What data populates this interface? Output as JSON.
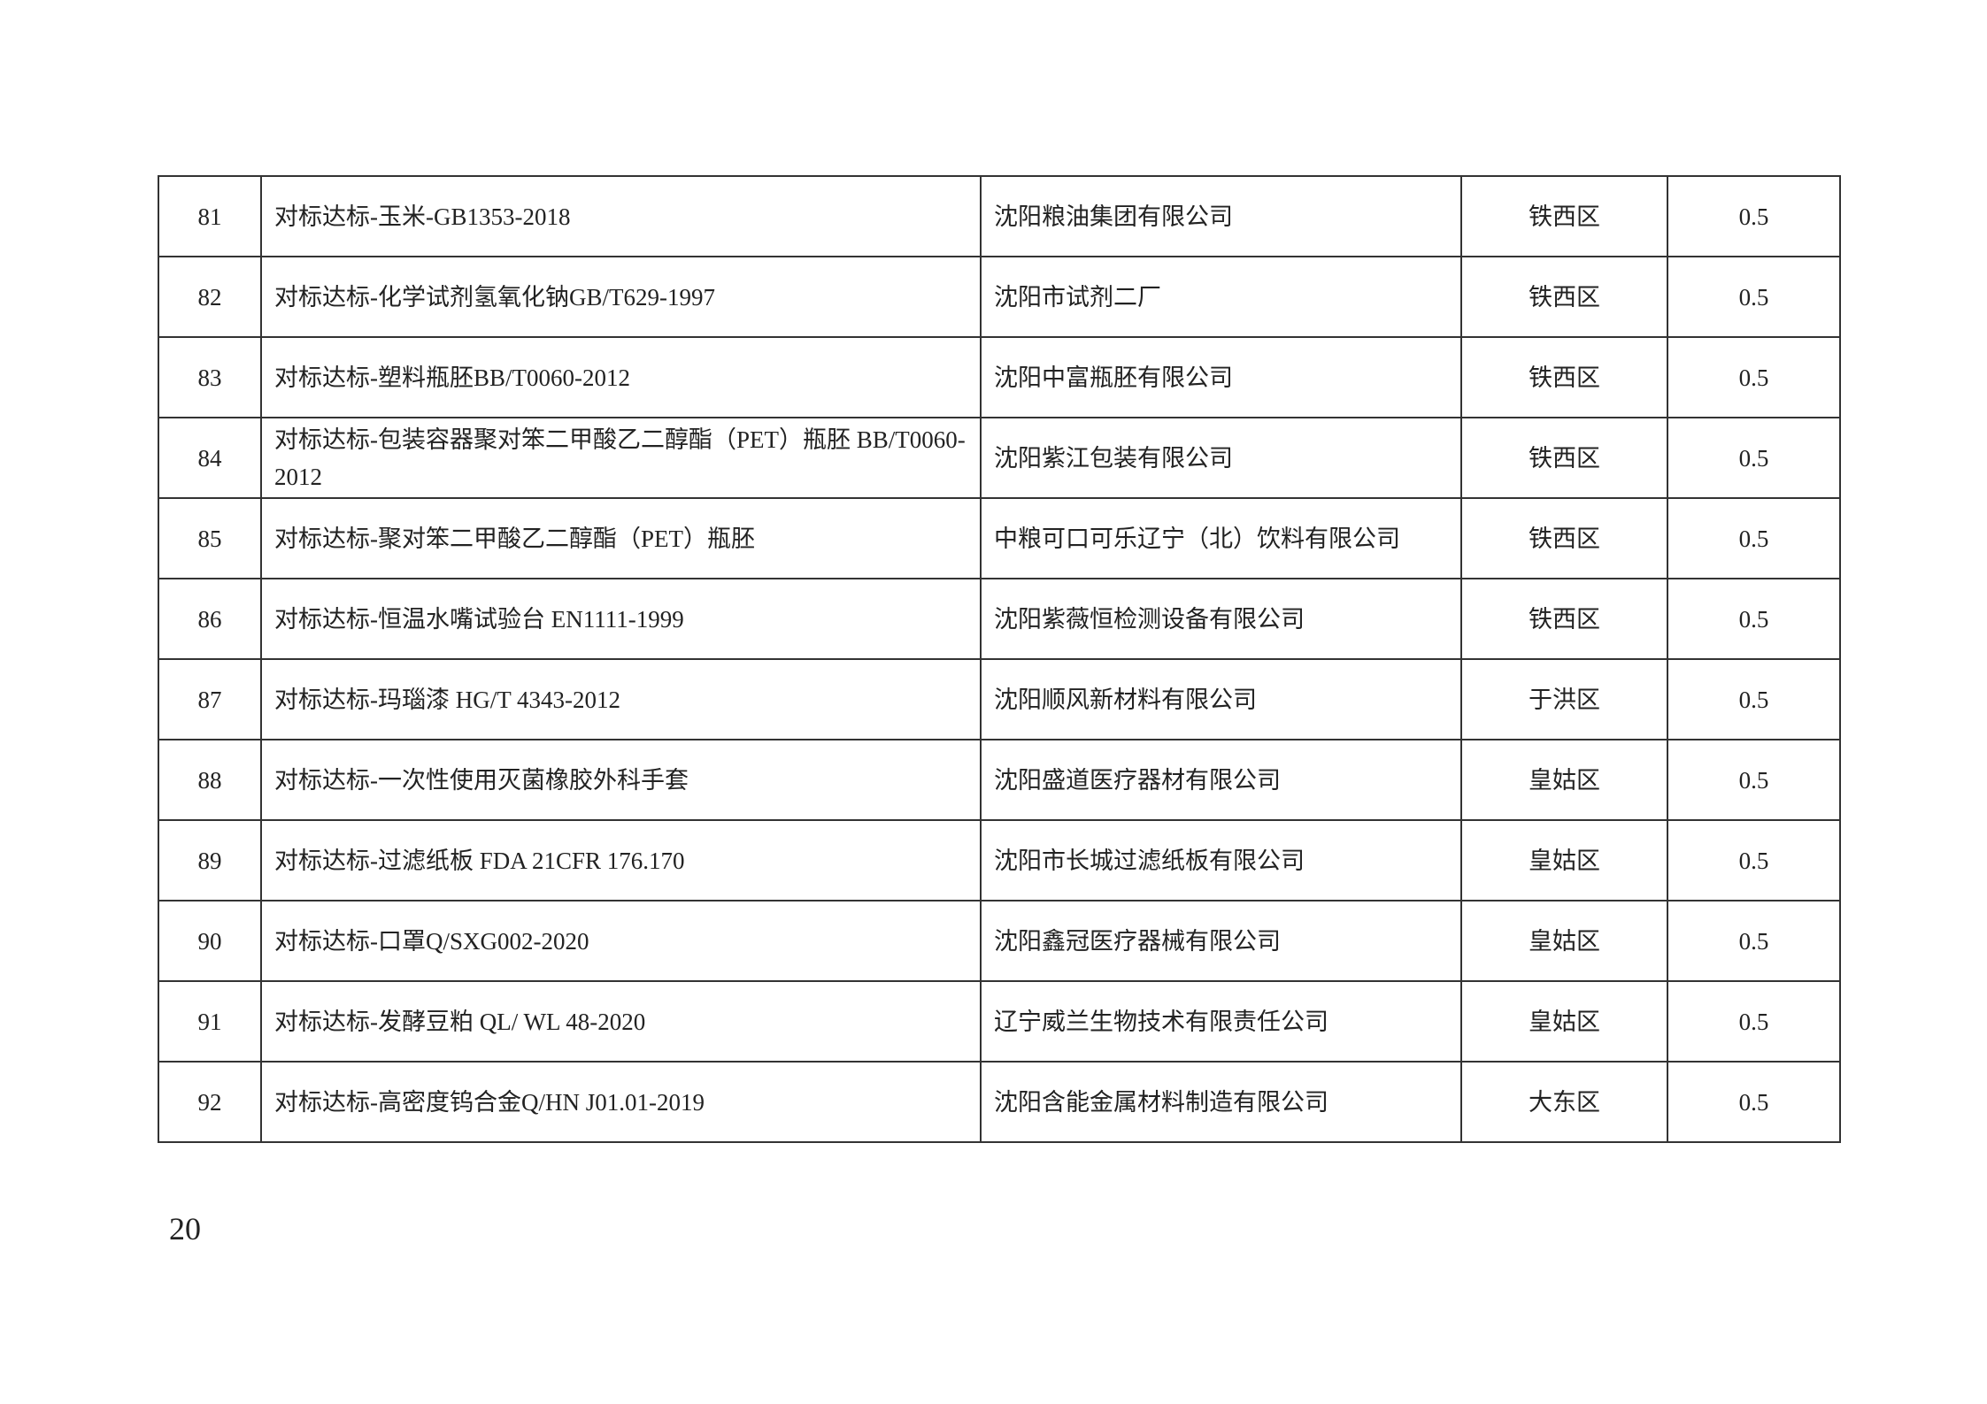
{
  "rows": [
    {
      "no": "81",
      "project": "对标达标-玉米-GB1353-2018",
      "company": "沈阳粮油集团有限公司",
      "district": "铁西区",
      "amount": "0.5"
    },
    {
      "no": "82",
      "project": "对标达标-化学试剂氢氧化钠GB/T629-1997",
      "company": "沈阳市试剂二厂",
      "district": "铁西区",
      "amount": "0.5"
    },
    {
      "no": "83",
      "project": "对标达标-塑料瓶胚BB/T0060-2012",
      "company": "沈阳中富瓶胚有限公司",
      "district": "铁西区",
      "amount": "0.5"
    },
    {
      "no": "84",
      "project": "对标达标-包装容器聚对笨二甲酸乙二醇酯（PET）瓶胚 BB/T0060-2012",
      "company": "沈阳紫江包装有限公司",
      "district": "铁西区",
      "amount": "0.5"
    },
    {
      "no": "85",
      "project": "对标达标-聚对笨二甲酸乙二醇酯（PET）瓶胚",
      "company": "中粮可口可乐辽宁（北）饮料有限公司",
      "district": "铁西区",
      "amount": "0.5"
    },
    {
      "no": "86",
      "project": "对标达标-恒温水嘴试验台 EN1111-1999",
      "company": "沈阳紫薇恒检测设备有限公司",
      "district": "铁西区",
      "amount": "0.5"
    },
    {
      "no": "87",
      "project": "对标达标-玛瑙漆 HG/T 4343-2012",
      "company": "沈阳顺风新材料有限公司",
      "district": "于洪区",
      "amount": "0.5"
    },
    {
      "no": "88",
      "project": "对标达标-一次性使用灭菌橡胶外科手套",
      "company": "沈阳盛道医疗器材有限公司",
      "district": "皇姑区",
      "amount": "0.5"
    },
    {
      "no": "89",
      "project": "对标达标-过滤纸板 FDA 21CFR 176.170",
      "company": "沈阳市长城过滤纸板有限公司",
      "district": "皇姑区",
      "amount": "0.5"
    },
    {
      "no": "90",
      "project": "对标达标-口罩Q/SXG002-2020",
      "company": "沈阳鑫冠医疗器械有限公司",
      "district": "皇姑区",
      "amount": "0.5"
    },
    {
      "no": "91",
      "project": "对标达标-发酵豆粕 QL/ WL 48-2020",
      "company": "辽宁威兰生物技术有限责任公司",
      "district": "皇姑区",
      "amount": "0.5"
    },
    {
      "no": "92",
      "project": "对标达标-高密度钨合金Q/HN J01.01-2019",
      "company": "沈阳含能金属材料制造有限公司",
      "district": "大东区",
      "amount": "0.5"
    }
  ],
  "page_number": "20"
}
